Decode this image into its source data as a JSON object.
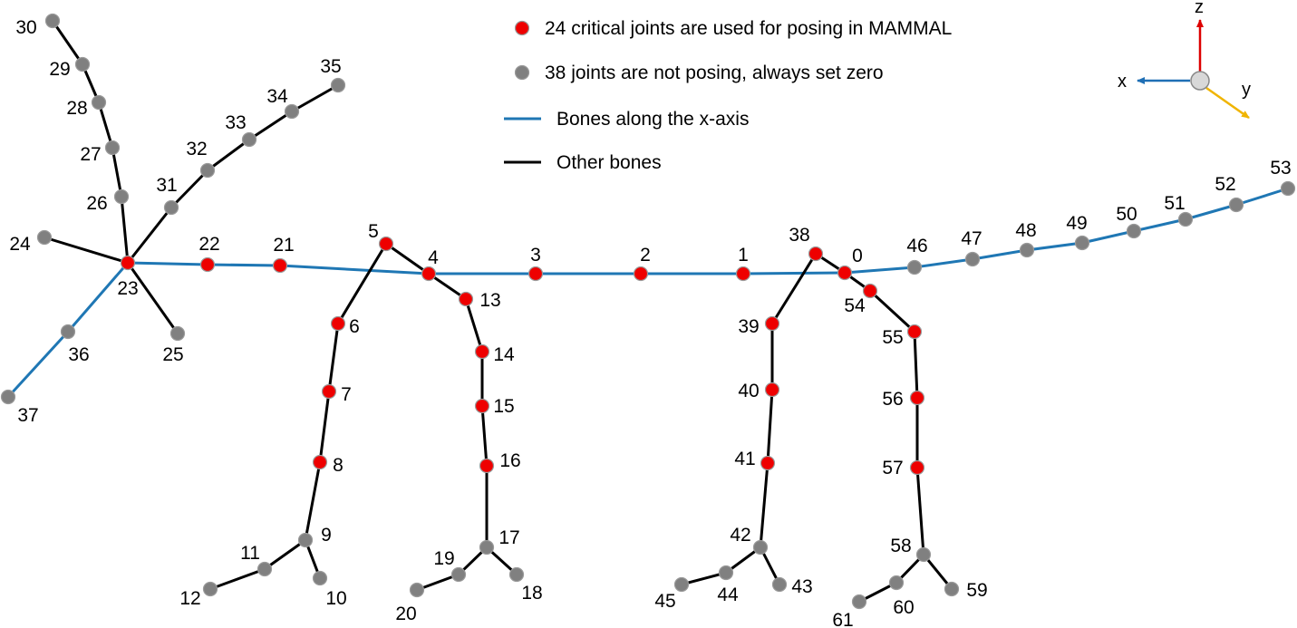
{
  "colors": {
    "critical_joint": "#ee0000",
    "other_joint": "#808080",
    "x_axis_bone": "#1f77b4",
    "other_bone": "#000000",
    "axis_x": "#1f6fb5",
    "axis_y": "#f0b400",
    "axis_z": "#dd0000",
    "axis_origin": "#d8d8d8"
  },
  "legend": {
    "critical": "24 critical joints are used for posing in MAMMAL",
    "noncritical": "38 joints are not posing, always set zero",
    "x_bones": "Bones along the x-axis",
    "other_bones": "Other bones"
  },
  "axes": {
    "x": "x",
    "y": "y",
    "z": "z"
  },
  "joints": [
    {
      "id": 0,
      "label": "0",
      "critical": true
    },
    {
      "id": 1,
      "label": "1",
      "critical": true
    },
    {
      "id": 2,
      "label": "2",
      "critical": true
    },
    {
      "id": 3,
      "label": "3",
      "critical": true
    },
    {
      "id": 4,
      "label": "4",
      "critical": true
    },
    {
      "id": 5,
      "label": "5",
      "critical": true
    },
    {
      "id": 6,
      "label": "6",
      "critical": true
    },
    {
      "id": 7,
      "label": "7",
      "critical": true
    },
    {
      "id": 8,
      "label": "8",
      "critical": true
    },
    {
      "id": 9,
      "label": "9",
      "critical": false
    },
    {
      "id": 10,
      "label": "10",
      "critical": false
    },
    {
      "id": 11,
      "label": "11",
      "critical": false
    },
    {
      "id": 12,
      "label": "12",
      "critical": false
    },
    {
      "id": 13,
      "label": "13",
      "critical": true
    },
    {
      "id": 14,
      "label": "14",
      "critical": true
    },
    {
      "id": 15,
      "label": "15",
      "critical": true
    },
    {
      "id": 16,
      "label": "16",
      "critical": true
    },
    {
      "id": 17,
      "label": "17",
      "critical": false
    },
    {
      "id": 18,
      "label": "18",
      "critical": false
    },
    {
      "id": 19,
      "label": "19",
      "critical": false
    },
    {
      "id": 20,
      "label": "20",
      "critical": false
    },
    {
      "id": 21,
      "label": "21",
      "critical": true
    },
    {
      "id": 22,
      "label": "22",
      "critical": true
    },
    {
      "id": 23,
      "label": "23",
      "critical": true
    },
    {
      "id": 24,
      "label": "24",
      "critical": false
    },
    {
      "id": 25,
      "label": "25",
      "critical": false
    },
    {
      "id": 26,
      "label": "26",
      "critical": false
    },
    {
      "id": 27,
      "label": "27",
      "critical": false
    },
    {
      "id": 28,
      "label": "28",
      "critical": false
    },
    {
      "id": 29,
      "label": "29",
      "critical": false
    },
    {
      "id": 30,
      "label": "30",
      "critical": false
    },
    {
      "id": 31,
      "label": "31",
      "critical": false
    },
    {
      "id": 32,
      "label": "32",
      "critical": false
    },
    {
      "id": 33,
      "label": "33",
      "critical": false
    },
    {
      "id": 34,
      "label": "34",
      "critical": false
    },
    {
      "id": 35,
      "label": "35",
      "critical": false
    },
    {
      "id": 36,
      "label": "36",
      "critical": false
    },
    {
      "id": 37,
      "label": "37",
      "critical": false
    },
    {
      "id": 38,
      "label": "38",
      "critical": true
    },
    {
      "id": 39,
      "label": "39",
      "critical": true
    },
    {
      "id": 40,
      "label": "40",
      "critical": true
    },
    {
      "id": 41,
      "label": "41",
      "critical": true
    },
    {
      "id": 42,
      "label": "42",
      "critical": false
    },
    {
      "id": 43,
      "label": "43",
      "critical": false
    },
    {
      "id": 44,
      "label": "44",
      "critical": false
    },
    {
      "id": 45,
      "label": "45",
      "critical": false
    },
    {
      "id": 46,
      "label": "46",
      "critical": false
    },
    {
      "id": 47,
      "label": "47",
      "critical": false
    },
    {
      "id": 48,
      "label": "48",
      "critical": false
    },
    {
      "id": 49,
      "label": "49",
      "critical": false
    },
    {
      "id": 50,
      "label": "50",
      "critical": false
    },
    {
      "id": 51,
      "label": "51",
      "critical": false
    },
    {
      "id": 52,
      "label": "52",
      "critical": false
    },
    {
      "id": 53,
      "label": "53",
      "critical": false
    },
    {
      "id": 54,
      "label": "54",
      "critical": true
    },
    {
      "id": 55,
      "label": "55",
      "critical": true
    },
    {
      "id": 56,
      "label": "56",
      "critical": true
    },
    {
      "id": 57,
      "label": "57",
      "critical": true
    },
    {
      "id": 58,
      "label": "58",
      "critical": false
    },
    {
      "id": 59,
      "label": "59",
      "critical": false
    },
    {
      "id": 60,
      "label": "60",
      "critical": false
    },
    {
      "id": 61,
      "label": "61",
      "critical": false
    }
  ],
  "bones": [
    {
      "a": 0,
      "b": 1,
      "x_axis": true
    },
    {
      "a": 1,
      "b": 2,
      "x_axis": true
    },
    {
      "a": 2,
      "b": 3,
      "x_axis": true
    },
    {
      "a": 3,
      "b": 4,
      "x_axis": true
    },
    {
      "a": 4,
      "b": 21,
      "x_axis": true
    },
    {
      "a": 21,
      "b": 22,
      "x_axis": true
    },
    {
      "a": 22,
      "b": 23,
      "x_axis": true
    },
    {
      "a": 23,
      "b": 36,
      "x_axis": true
    },
    {
      "a": 36,
      "b": 37,
      "x_axis": true
    },
    {
      "a": 0,
      "b": 46,
      "x_axis": true
    },
    {
      "a": 46,
      "b": 47,
      "x_axis": true
    },
    {
      "a": 47,
      "b": 48,
      "x_axis": true
    },
    {
      "a": 48,
      "b": 49,
      "x_axis": true
    },
    {
      "a": 49,
      "b": 50,
      "x_axis": true
    },
    {
      "a": 50,
      "b": 51,
      "x_axis": true
    },
    {
      "a": 51,
      "b": 52,
      "x_axis": true
    },
    {
      "a": 52,
      "b": 53,
      "x_axis": true
    },
    {
      "a": 4,
      "b": 5,
      "x_axis": false
    },
    {
      "a": 5,
      "b": 6,
      "x_axis": false
    },
    {
      "a": 6,
      "b": 7,
      "x_axis": false
    },
    {
      "a": 7,
      "b": 8,
      "x_axis": false
    },
    {
      "a": 8,
      "b": 9,
      "x_axis": false
    },
    {
      "a": 9,
      "b": 10,
      "x_axis": false
    },
    {
      "a": 9,
      "b": 11,
      "x_axis": false
    },
    {
      "a": 11,
      "b": 12,
      "x_axis": false
    },
    {
      "a": 4,
      "b": 13,
      "x_axis": false
    },
    {
      "a": 13,
      "b": 14,
      "x_axis": false
    },
    {
      "a": 14,
      "b": 15,
      "x_axis": false
    },
    {
      "a": 15,
      "b": 16,
      "x_axis": false
    },
    {
      "a": 16,
      "b": 17,
      "x_axis": false
    },
    {
      "a": 17,
      "b": 18,
      "x_axis": false
    },
    {
      "a": 17,
      "b": 19,
      "x_axis": false
    },
    {
      "a": 19,
      "b": 20,
      "x_axis": false
    },
    {
      "a": 23,
      "b": 24,
      "x_axis": false
    },
    {
      "a": 23,
      "b": 25,
      "x_axis": false
    },
    {
      "a": 23,
      "b": 26,
      "x_axis": false
    },
    {
      "a": 26,
      "b": 27,
      "x_axis": false
    },
    {
      "a": 27,
      "b": 28,
      "x_axis": false
    },
    {
      "a": 28,
      "b": 29,
      "x_axis": false
    },
    {
      "a": 29,
      "b": 30,
      "x_axis": false
    },
    {
      "a": 23,
      "b": 31,
      "x_axis": false
    },
    {
      "a": 31,
      "b": 32,
      "x_axis": false
    },
    {
      "a": 32,
      "b": 33,
      "x_axis": false
    },
    {
      "a": 33,
      "b": 34,
      "x_axis": false
    },
    {
      "a": 34,
      "b": 35,
      "x_axis": false
    },
    {
      "a": 0,
      "b": 38,
      "x_axis": false
    },
    {
      "a": 38,
      "b": 39,
      "x_axis": false
    },
    {
      "a": 39,
      "b": 40,
      "x_axis": false
    },
    {
      "a": 40,
      "b": 41,
      "x_axis": false
    },
    {
      "a": 41,
      "b": 42,
      "x_axis": false
    },
    {
      "a": 42,
      "b": 43,
      "x_axis": false
    },
    {
      "a": 42,
      "b": 44,
      "x_axis": false
    },
    {
      "a": 44,
      "b": 45,
      "x_axis": false
    },
    {
      "a": 0,
      "b": 54,
      "x_axis": false
    },
    {
      "a": 54,
      "b": 55,
      "x_axis": false
    },
    {
      "a": 55,
      "b": 56,
      "x_axis": false
    },
    {
      "a": 56,
      "b": 57,
      "x_axis": false
    },
    {
      "a": 57,
      "b": 58,
      "x_axis": false
    },
    {
      "a": 58,
      "b": 59,
      "x_axis": false
    },
    {
      "a": 58,
      "b": 60,
      "x_axis": false
    },
    {
      "a": 60,
      "b": 61,
      "x_axis": false
    }
  ]
}
